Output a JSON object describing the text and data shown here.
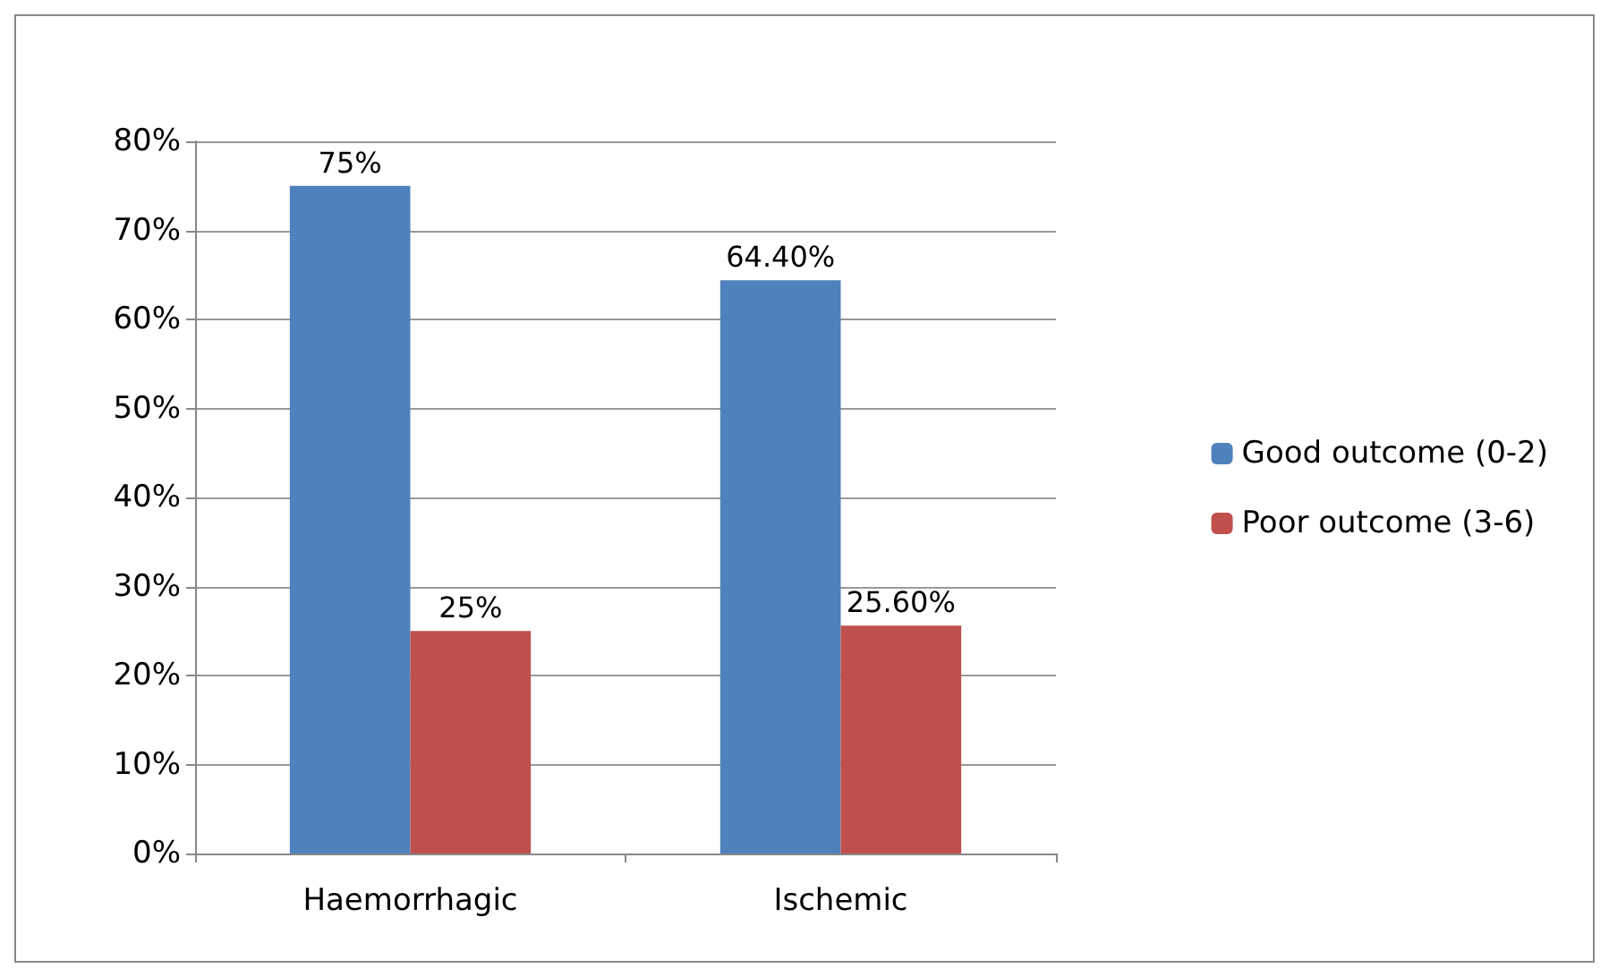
{
  "chart_data": {
    "type": "bar",
    "categories": [
      "Haemorrhagic",
      "Ischemic"
    ],
    "series": [
      {
        "name": "Good outcome (0-2)",
        "color": "#4f81bd",
        "values": [
          75,
          64.4
        ],
        "value_labels": [
          "75%",
          "64.40%"
        ]
      },
      {
        "name": "Poor outcome (3-6)",
        "color": "#c0504d",
        "values": [
          25,
          25.6
        ],
        "value_labels": [
          "25%",
          "25.60%"
        ]
      }
    ],
    "ylim": [
      0,
      80
    ],
    "yticks": [
      {
        "value": 0,
        "label": "0%"
      },
      {
        "value": 10,
        "label": "10%"
      },
      {
        "value": 20,
        "label": "20%"
      },
      {
        "value": 30,
        "label": "30%"
      },
      {
        "value": 40,
        "label": "40%"
      },
      {
        "value": 50,
        "label": "50%"
      },
      {
        "value": 60,
        "label": "60%"
      },
      {
        "value": 70,
        "label": "70%"
      },
      {
        "value": 80,
        "label": "80%"
      }
    ],
    "grid": "y",
    "legend": "right"
  }
}
